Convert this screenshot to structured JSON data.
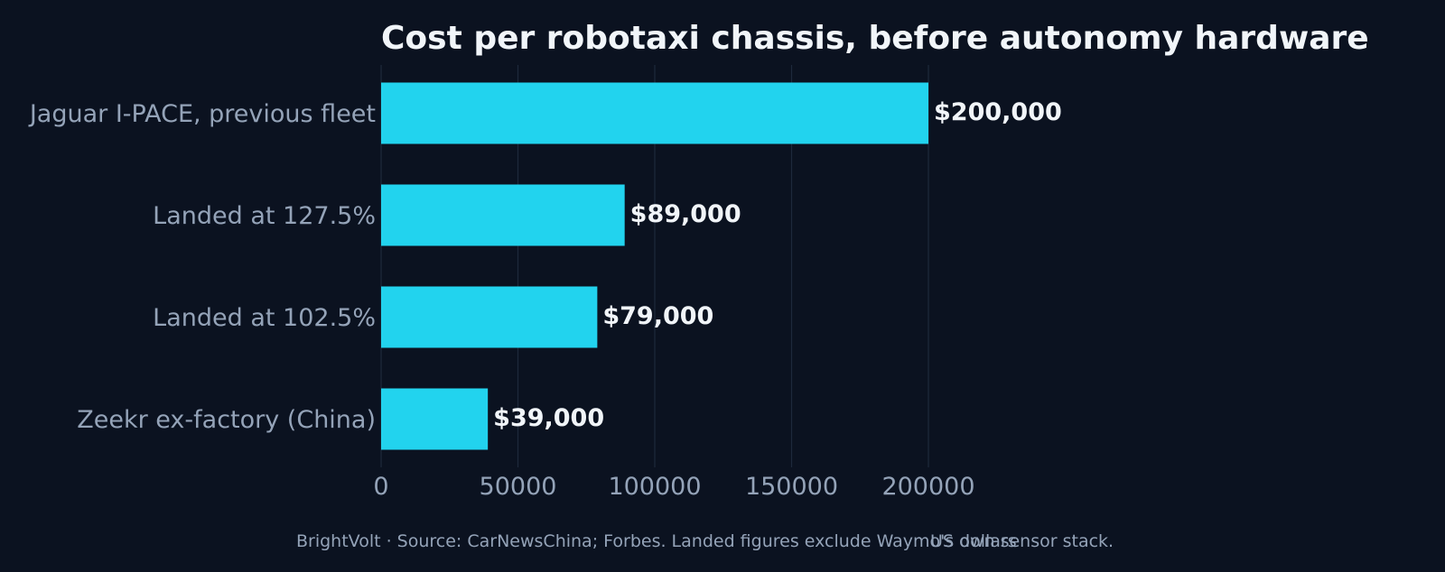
{
  "chart_data": {
    "type": "bar",
    "orientation": "horizontal",
    "title": "Cost per robotaxi chassis, before autonomy hardware",
    "xlabel": "US dollars",
    "ylabel": "",
    "categories": [
      "Jaguar I-PACE, previous fleet",
      "Landed at 127.5%",
      "Landed at 102.5%",
      "Zeekr ex-factory (China)"
    ],
    "values": [
      200000,
      89000,
      79000,
      39000
    ],
    "value_labels": [
      "$200,000",
      "$89,000",
      "$79,000",
      "$39,000"
    ],
    "xlim": [
      0,
      200000
    ],
    "xticks": [
      0,
      50000,
      100000,
      150000,
      200000
    ],
    "xtick_labels": [
      "0",
      "50000",
      "100000",
      "150000",
      "200000"
    ],
    "grid": "vertical",
    "legend": "none"
  },
  "footer": {
    "credit": "BrightVolt  ·  Source: CarNewsChina; Forbes. Landed figures exclude Waymo's own sensor stack."
  },
  "colors": {
    "background": "#0b1220",
    "bar": "#22d3ee",
    "title": "#f1f5f9",
    "value_label": "#f1f5f9",
    "axis_text": "#94a3b8",
    "grid": "#1e293b"
  }
}
